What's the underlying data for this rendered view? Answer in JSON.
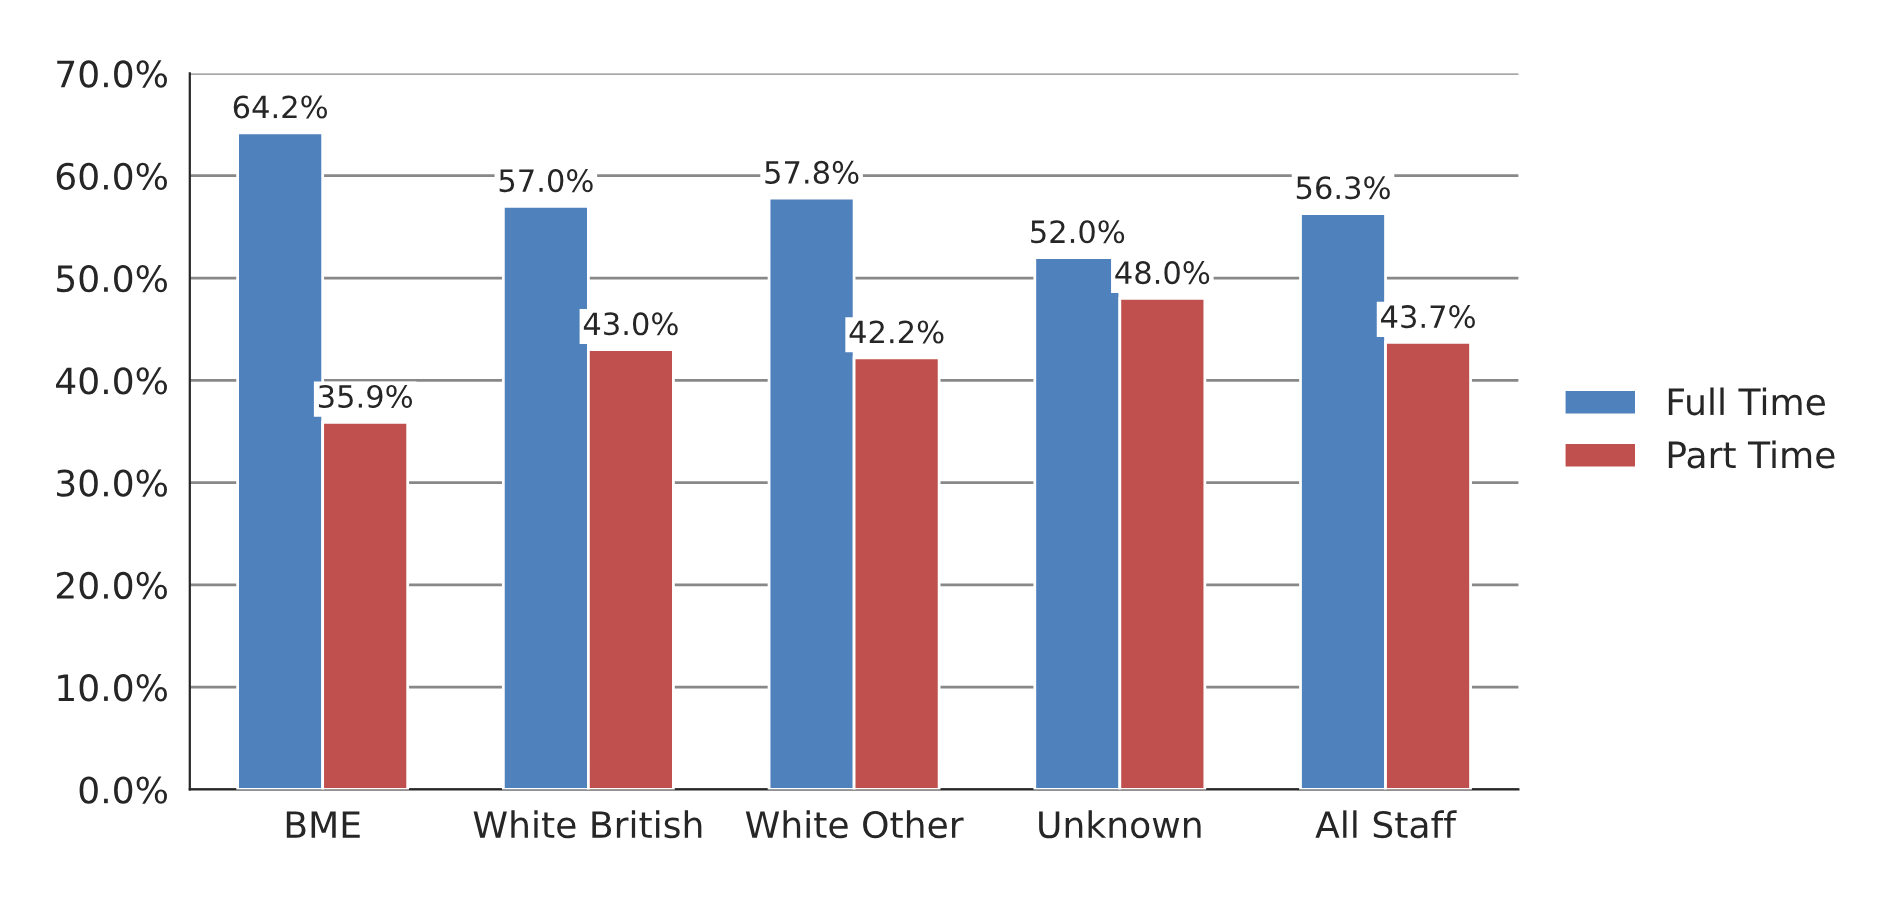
{
  "chart_data": {
    "type": "bar",
    "categories": [
      "BME",
      "White British",
      "White Other",
      "Unknown",
      "All Staff"
    ],
    "series": [
      {
        "name": "Full Time",
        "color": "#4f81bd",
        "values": [
          64.2,
          57.0,
          57.8,
          52.0,
          56.3
        ],
        "value_labels": [
          "64.2%",
          "57.0%",
          "57.8%",
          "52.0%",
          "56.3%"
        ]
      },
      {
        "name": "Part Time",
        "color": "#c0504d",
        "values": [
          35.9,
          43.0,
          42.2,
          48.0,
          43.7
        ],
        "value_labels": [
          "35.9%",
          "43.0%",
          "42.2%",
          "48.0%",
          "43.7%"
        ]
      }
    ],
    "ylim": [
      0,
      70
    ],
    "yticks": [
      {
        "value": 0,
        "label": "0.0%"
      },
      {
        "value": 10,
        "label": "10.0%"
      },
      {
        "value": 20,
        "label": "20.0%"
      },
      {
        "value": 30,
        "label": "30.0%"
      },
      {
        "value": 40,
        "label": "40.0%"
      },
      {
        "value": 50,
        "label": "50.0%"
      },
      {
        "value": 60,
        "label": "60.0%"
      },
      {
        "value": 70,
        "label": "70.0%"
      }
    ],
    "grid": "y",
    "legend": "right"
  }
}
